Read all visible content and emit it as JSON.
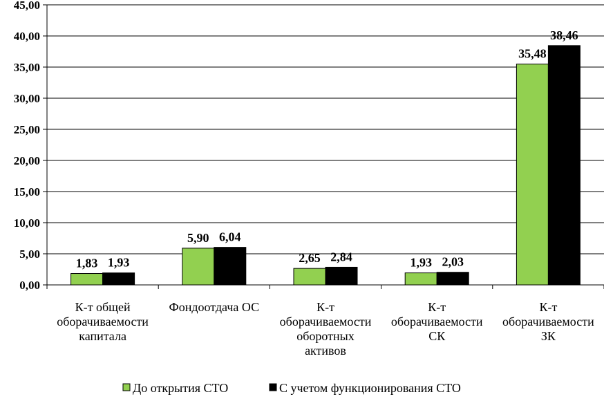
{
  "chart_data": {
    "type": "bar",
    "categories": [
      [
        "К-т общей",
        "оборачиваемости",
        "капитала"
      ],
      [
        "Фондоотдача ОС"
      ],
      [
        "К-т",
        "оборачиваемости",
        "оборотных",
        "активов"
      ],
      [
        "К-т",
        "оборачиваемости",
        "СК"
      ],
      [
        "К-т",
        "оборачиваемости",
        "ЗК"
      ]
    ],
    "series": [
      {
        "name": "До открытия СТО",
        "color": "#92d050",
        "values": [
          1.83,
          5.9,
          2.65,
          1.93,
          35.48
        ],
        "labels": [
          "1,83",
          "5,90",
          "2,65",
          "1,93",
          "35,48"
        ]
      },
      {
        "name": "С учетом функционирования СТО",
        "color": "#000000",
        "values": [
          1.93,
          6.04,
          2.84,
          2.03,
          38.46
        ],
        "labels": [
          "1,93",
          "6,04",
          "2,84",
          "2,03",
          "38,46"
        ]
      }
    ],
    "ylim": [
      0,
      45
    ],
    "yticks": [
      0,
      5,
      10,
      15,
      20,
      25,
      30,
      35,
      40,
      45
    ],
    "ytick_labels": [
      "0,00",
      "5,00",
      "10,00",
      "15,00",
      "20,00",
      "25,00",
      "30,00",
      "35,00",
      "40,00",
      "45,00"
    ],
    "grid": true,
    "legend_position": "bottom",
    "title": "",
    "xlabel": "",
    "ylabel": ""
  }
}
